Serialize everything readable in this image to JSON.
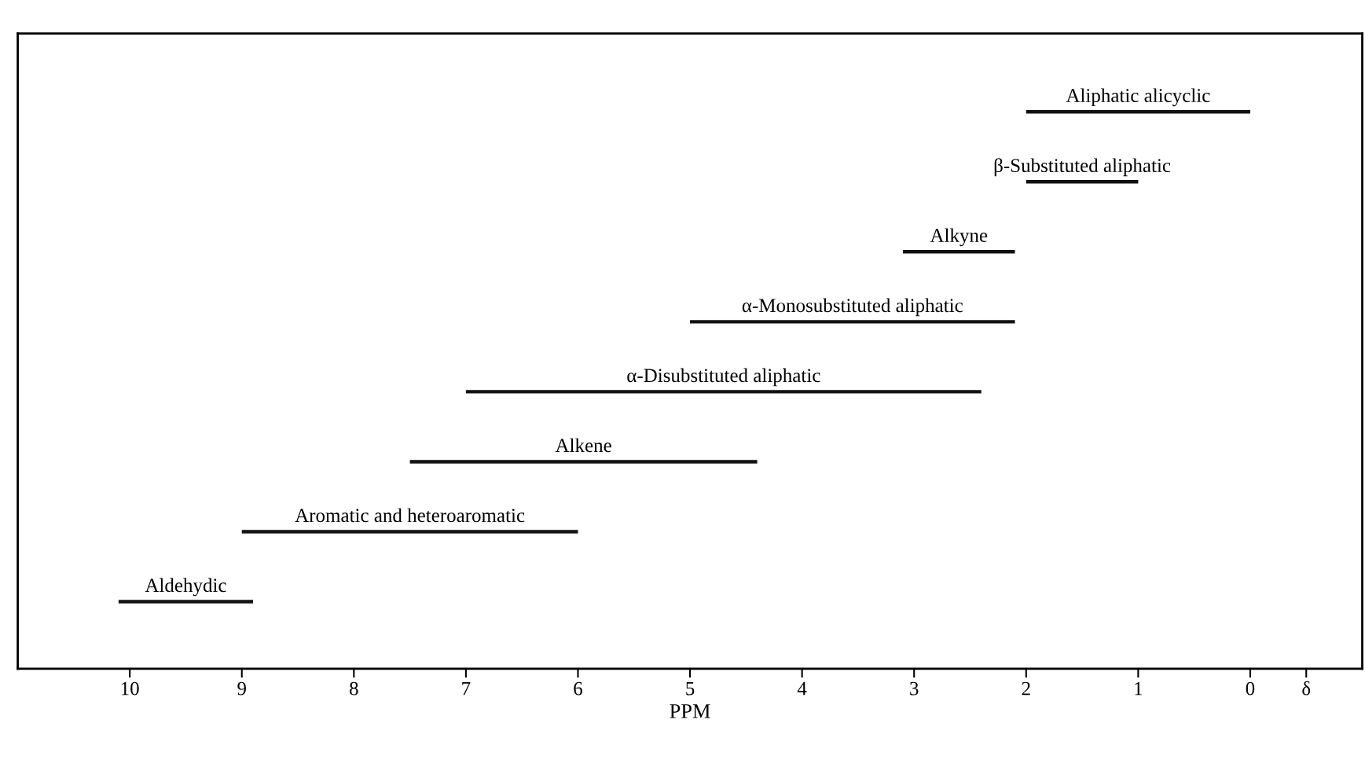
{
  "chart_data": {
    "type": "bar",
    "orientation": "horizontal",
    "xlabel": "PPM",
    "categories": [
      "Aliphatic alicyclic",
      "β-Substituted aliphatic",
      "Alkyne",
      "α-Monosubstituted aliphatic",
      "α-Disubstituted aliphatic",
      "Alkene",
      "Aromatic and heteroaromatic",
      "Aldehydic"
    ],
    "base": [
      0,
      1.0,
      2.1,
      2.1,
      2.4,
      4.4,
      6.0,
      8.9
    ],
    "values": [
      2.0,
      1.0,
      1.0,
      2.9,
      4.6,
      3.1,
      3.0,
      1.2
    ],
    "color": "#111111",
    "xlim": [
      11,
      -1
    ],
    "xticks": [
      10,
      9,
      8,
      7,
      6,
      5,
      4,
      3,
      2,
      1,
      0,
      {
        "value": -0.5,
        "label": "δ"
      }
    ],
    "tick_labels": "x",
    "grid": false,
    "legend": false
  }
}
